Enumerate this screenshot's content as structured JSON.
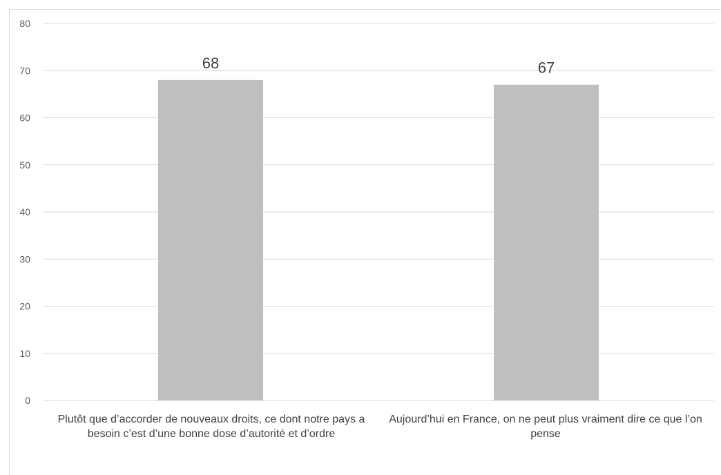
{
  "chart_data": {
    "type": "bar",
    "categories": [
      "Plutôt que d’accorder de nouveaux droits, ce dont notre pays a besoin c’est d’une bonne dose d’autorité et d’ordre",
      "Aujourd’hui en France, on ne peut plus vraiment dire ce que l’on pense"
    ],
    "values": [
      68,
      67
    ],
    "data_labels": [
      "68",
      "67"
    ],
    "title": "",
    "xlabel": "",
    "ylabel": "",
    "ylim": [
      0,
      80
    ],
    "yticks": [
      0,
      10,
      20,
      30,
      40,
      50,
      60,
      70,
      80
    ],
    "grid": true,
    "legend": "none",
    "colors": {
      "bar": "#bfbfbf",
      "grid": "#d9d9d9",
      "text": "#595959",
      "value_label": "#404040"
    }
  }
}
